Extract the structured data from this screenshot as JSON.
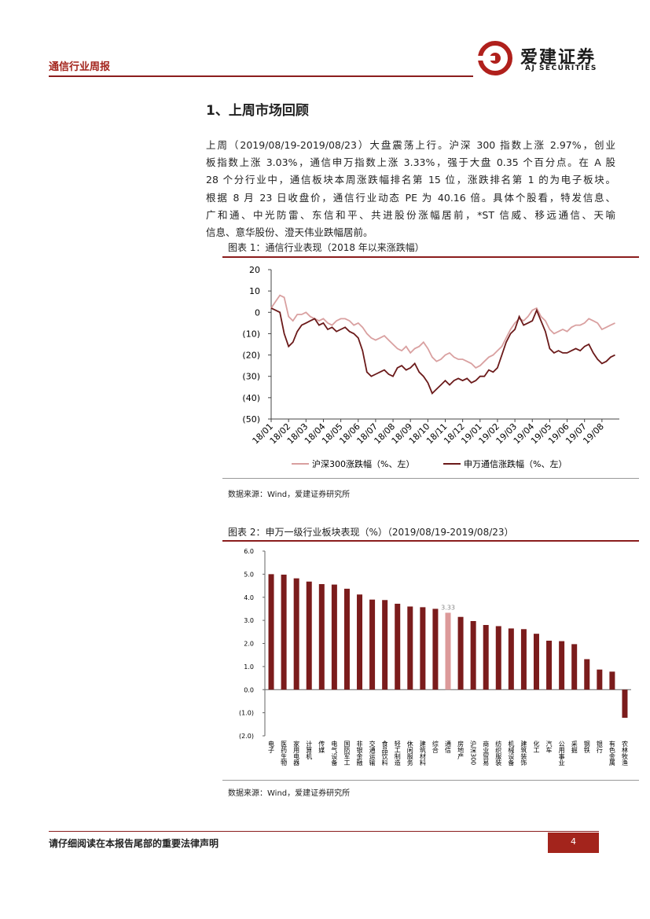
{
  "header": {
    "title": "通信行业周报",
    "logo_cn": "爱建证券",
    "logo_en": "AJ SECURITIES"
  },
  "section_title": "1、上周市场回顾",
  "paragraph": [
    "上周（2019/08/19-2019/08/23）大盘震荡上行。沪深 300 指数上涨 2.97%，创业",
    "板指数上涨 3.03%，通信申万指数上涨 3.33%，强于大盘 0.35 个百分点。在 A 股",
    "28 个分行业中，通信板块本周涨跌幅排名第 15 位，涨跌排名第 1 的为电子板块。",
    "根据 8 月 23 日收盘价，通信行业动态 PE 为 40.16 倍。具体个股看，特发信息、",
    "广和通、中光防雷、东信和平、共进股份涨幅居前，*ST 信威、移远通信、天喻",
    "信息、意华股份、澄天伟业跌幅居前。"
  ],
  "figures": [
    {
      "caption": "图表 1：通信行业表现（2018 年以来涨跌幅）",
      "source": "数据来源：Wind，爱建证券研究所"
    },
    {
      "caption": "图表 2：申万一级行业板块表现（%）（2019/08/19-2019/08/23）",
      "source": "数据来源：Wind，爱建证券研究所"
    }
  ],
  "chart_data": [
    {
      "type": "line",
      "x": [
        "18/01",
        "18/01",
        "18/01",
        "18/01",
        "18/02",
        "18/02",
        "18/02",
        "18/02",
        "18/03",
        "18/03",
        "18/03",
        "18/03",
        "18/04",
        "18/04",
        "18/04",
        "18/04",
        "18/05",
        "18/05",
        "18/05",
        "18/05",
        "18/06",
        "18/06",
        "18/06",
        "18/06",
        "18/07",
        "18/07",
        "18/07",
        "18/07",
        "18/08",
        "18/08",
        "18/08",
        "18/08",
        "18/09",
        "18/09",
        "18/09",
        "18/09",
        "18/10",
        "18/10",
        "18/10",
        "18/10",
        "18/11",
        "18/11",
        "18/11",
        "18/11",
        "18/12",
        "18/12",
        "18/12",
        "18/12",
        "19/01",
        "19/01",
        "19/01",
        "19/01",
        "19/02",
        "19/02",
        "19/02",
        "19/02",
        "19/03",
        "19/03",
        "19/03",
        "19/03",
        "19/04",
        "19/04",
        "19/04",
        "19/04",
        "19/05",
        "19/05",
        "19/05",
        "19/05",
        "19/06",
        "19/06",
        "19/06",
        "19/06",
        "19/07",
        "19/07",
        "19/07",
        "19/07",
        "19/08",
        "19/08",
        "19/08",
        "19/08"
      ],
      "xticks": [
        "18/01",
        "18/02",
        "18/03",
        "18/04",
        "18/05",
        "18/06",
        "18/07",
        "18/08",
        "18/09",
        "18/10",
        "18/11",
        "18/12",
        "19/01",
        "19/02",
        "19/03",
        "19/04",
        "19/05",
        "19/06",
        "19/07",
        "19/08"
      ],
      "series": [
        {
          "name": "沪深300涨跌幅（%、左）",
          "color": "#d9a0a0",
          "values": [
            2,
            5,
            8,
            7,
            -2,
            -4,
            -1,
            -1,
            0,
            -2,
            -3,
            -4,
            -3,
            -5,
            -6,
            -4,
            -3,
            -3,
            -4,
            -6,
            -5,
            -7,
            -10,
            -12,
            -13,
            -12,
            -11,
            -13,
            -15,
            -17,
            -18,
            -16,
            -19,
            -17,
            -16,
            -14,
            -17,
            -21,
            -23,
            -22,
            -20,
            -19,
            -21,
            -22,
            -22,
            -23,
            -24,
            -26,
            -25,
            -23,
            -21,
            -20,
            -18,
            -16,
            -12,
            -8,
            -5,
            -3,
            -4,
            -2,
            1,
            2,
            -2,
            -4,
            -8,
            -10,
            -9,
            -8,
            -9,
            -7,
            -6,
            -6,
            -5,
            -3,
            -4,
            -5,
            -8,
            -7,
            -6,
            -5
          ]
        },
        {
          "name": "申万通信涨跌幅（%、左）",
          "color": "#6b1a1a",
          "values": [
            2,
            1,
            0,
            -10,
            -16,
            -14,
            -9,
            -6,
            -5,
            -4,
            -3,
            -6,
            -5,
            -8,
            -7,
            -9,
            -8,
            -7,
            -9,
            -10,
            -12,
            -18,
            -28,
            -30,
            -29,
            -28,
            -27,
            -29,
            -30,
            -26,
            -25,
            -27,
            -26,
            -24,
            -28,
            -30,
            -33,
            -38,
            -36,
            -34,
            -32,
            -34,
            -32,
            -31,
            -32,
            -31,
            -33,
            -32,
            -30,
            -30,
            -27,
            -28,
            -26,
            -20,
            -14,
            -10,
            -8,
            -2,
            -6,
            -5,
            -4,
            1,
            -4,
            -9,
            -17,
            -19,
            -18,
            -19,
            -19,
            -18,
            -17,
            -18,
            -16,
            -15,
            -19,
            -22,
            -24,
            -23,
            -21,
            -20
          ]
        }
      ],
      "ylim": [
        -50,
        20
      ],
      "yticks": [
        20,
        10,
        0,
        {
          "value": -10,
          "label": "(10)"
        },
        {
          "value": -20,
          "label": "(20)"
        },
        {
          "value": -30,
          "label": "(30)"
        },
        {
          "value": -40,
          "label": "(40)"
        },
        {
          "value": -50,
          "label": "(50)"
        }
      ],
      "legend": "bottom"
    },
    {
      "type": "bar",
      "categories": [
        "电子",
        "医药生物",
        "家用电器",
        "计算机",
        "传媒",
        "电气设备",
        "国防军工",
        "非银金融",
        "交通运输",
        "食品饮料",
        "轻工制造",
        "休闲服务",
        "建筑材料",
        "综合",
        "通信",
        "房地产",
        "沪深300",
        "商业贸易",
        "纺织服装",
        "机械设备",
        "建筑装饰",
        "化工",
        "汽车",
        "公用事业",
        "采掘",
        "钢铁",
        "银行",
        "有色金属",
        "农林牧渔"
      ],
      "values": [
        5.0,
        4.98,
        4.82,
        4.68,
        4.57,
        4.55,
        4.37,
        4.12,
        3.9,
        3.88,
        3.72,
        3.6,
        3.57,
        3.5,
        3.33,
        3.15,
        2.97,
        2.8,
        2.75,
        2.65,
        2.62,
        2.42,
        2.12,
        2.1,
        1.97,
        1.32,
        0.87,
        0.78,
        -1.22
      ],
      "value_labels": [
        null,
        null,
        null,
        null,
        null,
        null,
        null,
        null,
        null,
        null,
        null,
        null,
        null,
        null,
        "3.33",
        null,
        null,
        null,
        null,
        null,
        null,
        null,
        null,
        null,
        null,
        null,
        null,
        null,
        null
      ],
      "colors": [
        "#7b1c1c",
        "#7b1c1c",
        "#7b1c1c",
        "#7b1c1c",
        "#7b1c1c",
        "#7b1c1c",
        "#7b1c1c",
        "#7b1c1c",
        "#7b1c1c",
        "#7b1c1c",
        "#7b1c1c",
        "#7b1c1c",
        "#7b1c1c",
        "#7b1c1c",
        "#dc9a9a",
        "#7b1c1c",
        "#7b1c1c",
        "#7b1c1c",
        "#7b1c1c",
        "#7b1c1c",
        "#7b1c1c",
        "#7b1c1c",
        "#7b1c1c",
        "#7b1c1c",
        "#7b1c1c",
        "#7b1c1c",
        "#7b1c1c",
        "#7b1c1c",
        "#7b1c1c"
      ],
      "ylim": [
        -2,
        6
      ],
      "yticks": [
        {
          "value": 6,
          "label": "6.0"
        },
        {
          "value": 5,
          "label": "5.0"
        },
        {
          "value": 4,
          "label": "4.0"
        },
        {
          "value": 3,
          "label": "3.0"
        },
        {
          "value": 2,
          "label": "2.0"
        },
        {
          "value": 1,
          "label": "1.0"
        },
        {
          "value": 0,
          "label": "0.0"
        },
        {
          "value": -1,
          "label": "(1.0)"
        },
        {
          "value": -2,
          "label": "(2.0)"
        }
      ]
    }
  ],
  "footer": {
    "disclaimer": "请仔细阅读在本报告尾部的重要法律声明",
    "page": "4"
  }
}
